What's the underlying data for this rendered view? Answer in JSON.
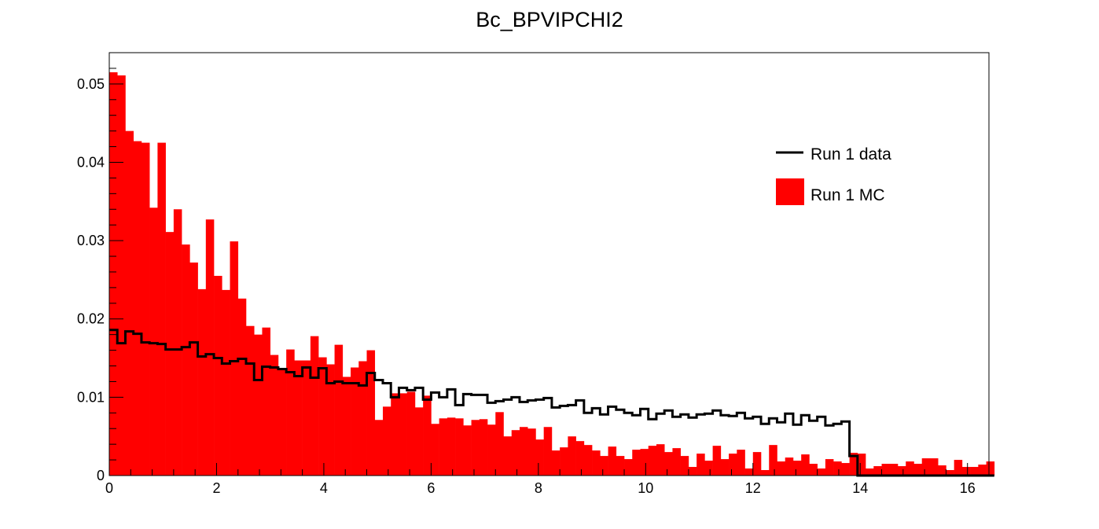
{
  "chart_data": {
    "type": "bar",
    "title": "Bc_BPVIPCHI2",
    "xlabel": "",
    "ylabel": "",
    "xlim": [
      0,
      16.4
    ],
    "ylim": [
      0,
      0.054
    ],
    "bin_width": 0.15,
    "x_ticks": [
      0,
      2,
      4,
      6,
      8,
      10,
      12,
      14,
      16
    ],
    "y_ticks": [
      0,
      0.01,
      0.02,
      0.03,
      0.04,
      0.05
    ],
    "x_tick_labels": [
      "0",
      "2",
      "4",
      "6",
      "8",
      "10",
      "12",
      "14",
      "16"
    ],
    "y_tick_labels": [
      "0",
      "0.01",
      "0.02",
      "0.03",
      "0.04",
      "0.05"
    ],
    "grid": false,
    "legend_position": "top-right",
    "series": [
      {
        "name": "Run 1 data",
        "style": "step",
        "color": "#000000",
        "values": [
          0.0186,
          0.0169,
          0.0184,
          0.0181,
          0.017,
          0.0169,
          0.0168,
          0.0161,
          0.0161,
          0.0164,
          0.017,
          0.0152,
          0.0155,
          0.015,
          0.0143,
          0.0146,
          0.0149,
          0.0143,
          0.0122,
          0.0139,
          0.0138,
          0.0136,
          0.0132,
          0.0127,
          0.0138,
          0.0125,
          0.0137,
          0.0118,
          0.012,
          0.0118,
          0.0118,
          0.0115,
          0.0131,
          0.0122,
          0.0118,
          0.01,
          0.0112,
          0.0109,
          0.0112,
          0.0097,
          0.0106,
          0.01,
          0.011,
          0.009,
          0.0104,
          0.0103,
          0.0103,
          0.0093,
          0.0095,
          0.0097,
          0.01,
          0.0094,
          0.0096,
          0.0097,
          0.0099,
          0.0087,
          0.0089,
          0.009,
          0.0096,
          0.008,
          0.0086,
          0.0078,
          0.0088,
          0.0084,
          0.008,
          0.0077,
          0.0085,
          0.0072,
          0.0079,
          0.0083,
          0.0075,
          0.0078,
          0.0074,
          0.0078,
          0.0079,
          0.0083,
          0.0077,
          0.0076,
          0.008,
          0.0073,
          0.0075,
          0.0066,
          0.0073,
          0.0068,
          0.0079,
          0.0065,
          0.0077,
          0.007,
          0.0075,
          0.0064,
          0.0066,
          0.0069,
          0.0025,
          0.0,
          0.0,
          0.0,
          0.0,
          0.0,
          0.0,
          0.0,
          0.0,
          0.0,
          0.0,
          0.0,
          0.0,
          0.0,
          0.0,
          0.0,
          0.0,
          0.0
        ]
      },
      {
        "name": "Run 1 MC",
        "style": "filled",
        "color": "#ff0000",
        "values": [
          0.0515,
          0.0511,
          0.044,
          0.0427,
          0.0425,
          0.0342,
          0.0425,
          0.0311,
          0.034,
          0.0295,
          0.0272,
          0.0238,
          0.0327,
          0.0255,
          0.0237,
          0.0299,
          0.0226,
          0.0191,
          0.018,
          0.0189,
          0.0154,
          0.0135,
          0.0161,
          0.0147,
          0.0147,
          0.0178,
          0.0151,
          0.0142,
          0.0167,
          0.0126,
          0.0138,
          0.0146,
          0.016,
          0.0071,
          0.0088,
          0.0105,
          0.0105,
          0.0107,
          0.0087,
          0.0102,
          0.0066,
          0.0073,
          0.0074,
          0.0073,
          0.0064,
          0.0071,
          0.0072,
          0.0065,
          0.0081,
          0.005,
          0.0058,
          0.0062,
          0.006,
          0.0046,
          0.0062,
          0.0032,
          0.0036,
          0.005,
          0.0044,
          0.0039,
          0.0032,
          0.0025,
          0.0037,
          0.0025,
          0.0021,
          0.0033,
          0.0034,
          0.0038,
          0.004,
          0.003,
          0.0035,
          0.0025,
          0.0011,
          0.0028,
          0.0019,
          0.0038,
          0.0021,
          0.0028,
          0.0033,
          0.0009,
          0.003,
          0.0007,
          0.0039,
          0.0018,
          0.0023,
          0.0019,
          0.0027,
          0.0015,
          0.0009,
          0.0021,
          0.0018,
          0.0016,
          0.0029,
          0.0028,
          0.0009,
          0.0012,
          0.0015,
          0.0015,
          0.0012,
          0.0018,
          0.0015,
          0.0022,
          0.0022,
          0.0013,
          0.0007,
          0.002,
          0.0011,
          0.0011,
          0.0014,
          0.0018
        ]
      }
    ]
  }
}
